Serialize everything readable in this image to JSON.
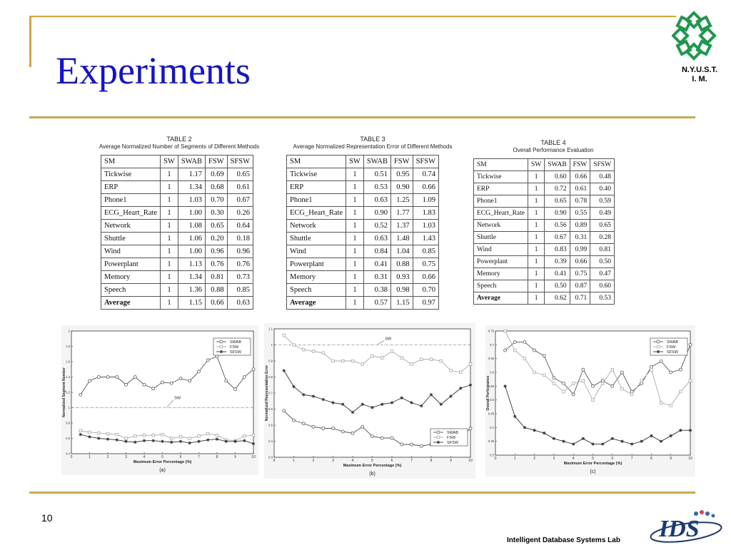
{
  "slide": {
    "title": "Experiments",
    "page_number": "10",
    "footer": "Intelligent Database Systems Lab",
    "logo_text_line1": "N.Y.U.S.T.",
    "logo_text_line2": "I. M.",
    "ids_logo": "IDS",
    "ids_logo_sub": "Intelligent Database Systems Lab",
    "colors": {
      "title": "#1010e0",
      "accent": "#e0a820",
      "logo": "#1a9a4a"
    }
  },
  "table2": {
    "number": "TABLE 2",
    "caption": "Average Normalized Number of Segments of Different Methods",
    "headers": [
      "SM",
      "SW",
      "SWAB",
      "FSW",
      "SFSW"
    ],
    "rows": [
      [
        "Tickwise",
        "1",
        "1.17",
        "0.69",
        "0.65"
      ],
      [
        "ERP",
        "1",
        "1.34",
        "0.68",
        "0.61"
      ],
      [
        "Phone1",
        "1",
        "1.03",
        "0.70",
        "0.67"
      ],
      [
        "ECG_Heart_Rate",
        "1",
        "1.00",
        "0.30",
        "0.26"
      ],
      [
        "Network",
        "1",
        "1.08",
        "0.65",
        "0.64"
      ],
      [
        "Shuttle",
        "1",
        "1.06",
        "0.20",
        "0.18"
      ],
      [
        "Wind",
        "1",
        "1.00",
        "0.96",
        "0.96"
      ],
      [
        "Powerplant",
        "1",
        "1.13",
        "0.76",
        "0.76"
      ],
      [
        "Memory",
        "1",
        "1.34",
        "0.81",
        "0.73"
      ],
      [
        "Speech",
        "1",
        "1.36",
        "0.88",
        "0.85"
      ],
      [
        "Average",
        "1",
        "1.15",
        "0.66",
        "0.63"
      ]
    ]
  },
  "table3": {
    "number": "TABLE 3",
    "caption": "Average Normalized Representation Error of Different Methods",
    "headers": [
      "SM",
      "SW",
      "SWAB",
      "FSW",
      "SFSW"
    ],
    "rows": [
      [
        "Tickwise",
        "1",
        "0.51",
        "0.95",
        "0.74"
      ],
      [
        "ERP",
        "1",
        "0.53",
        "0.90",
        "0.66"
      ],
      [
        "Phone1",
        "1",
        "0.63",
        "1.25",
        "1.09"
      ],
      [
        "ECG_Heart_Rate",
        "1",
        "0.90",
        "1.77",
        "1.83"
      ],
      [
        "Network",
        "1",
        "0.52",
        "1.37",
        "1.03"
      ],
      [
        "Shuttle",
        "1",
        "0.63",
        "1.48",
        "1.43"
      ],
      [
        "Wind",
        "1",
        "0.84",
        "1.04",
        "0.85"
      ],
      [
        "Powerplant",
        "1",
        "0.41",
        "0.88",
        "0.75"
      ],
      [
        "Memory",
        "1",
        "0.31",
        "0.93",
        "0.66"
      ],
      [
        "Speech",
        "1",
        "0.38",
        "0.98",
        "0.70"
      ],
      [
        "Average",
        "1",
        "0.57",
        "1.15",
        "0.97"
      ]
    ]
  },
  "table4": {
    "number": "TABLE 4",
    "caption": "Overall Performance Evaluation",
    "headers": [
      "SM",
      "SW",
      "SWAB",
      "FSW",
      "SFSW"
    ],
    "rows": [
      [
        "Tickwise",
        "1",
        "0.60",
        "0.66",
        "0.48"
      ],
      [
        "ERP",
        "1",
        "0.72",
        "0.61",
        "0.40"
      ],
      [
        "Phone1",
        "1",
        "0.65",
        "0.78",
        "0.59"
      ],
      [
        "ECG_Heart_Rate",
        "1",
        "0.90",
        "0.55",
        "0.49"
      ],
      [
        "Network",
        "1",
        "0.56",
        "0.89",
        "0.65"
      ],
      [
        "Shuttle",
        "1",
        "0.67",
        "0.31",
        "0.28"
      ],
      [
        "Wind",
        "1",
        "0.83",
        "0.99",
        "0.81"
      ],
      [
        "Powerplant",
        "1",
        "0.39",
        "0.66",
        "0.50"
      ],
      [
        "Memory",
        "1",
        "0.41",
        "0.75",
        "0.47"
      ],
      [
        "Speech",
        "1",
        "0.50",
        "0.87",
        "0.60"
      ],
      [
        "Average",
        "1",
        "0.62",
        "0.71",
        "0.53"
      ]
    ]
  },
  "chart_data": [
    {
      "type": "line",
      "sublabel": "(a)",
      "xlabel": "Maximum Error Percentage (%)",
      "ylabel": "Normalized Segment Number",
      "xlim": [
        0,
        10
      ],
      "ylim": [
        0.4,
        2
      ],
      "xticks": [
        0,
        1,
        2,
        3,
        4,
        5,
        6,
        7,
        8,
        9,
        10
      ],
      "yticks": [
        0.4,
        0.6,
        0.8,
        1,
        1.2,
        1.4,
        1.6,
        1.8,
        2
      ],
      "x": [
        0.5,
        1,
        1.5,
        2,
        2.5,
        3,
        3.5,
        4,
        4.5,
        5,
        5.5,
        6,
        6.5,
        7,
        7.5,
        8,
        8.5,
        9,
        9.5,
        10
      ],
      "series": [
        {
          "name": "SWAB",
          "color": "#555555",
          "marker": "circle",
          "values": [
            1.17,
            1.35,
            1.4,
            1.4,
            1.4,
            1.3,
            1.4,
            1.3,
            1.25,
            1.33,
            1.32,
            1.38,
            1.35,
            1.47,
            1.62,
            1.67,
            1.35,
            1.24,
            1.4,
            1.5
          ]
        },
        {
          "name": "FSW",
          "color": "#aaaaaa",
          "marker": "square",
          "values": [
            0.7,
            0.68,
            0.67,
            0.66,
            0.65,
            0.6,
            0.63,
            0.64,
            0.64,
            0.65,
            0.6,
            0.62,
            0.6,
            0.63,
            0.66,
            0.64,
            0.58,
            0.57,
            0.63,
            0.64
          ]
        },
        {
          "name": "SFSW",
          "color": "#333333",
          "marker": "star",
          "values": [
            0.65,
            0.62,
            0.6,
            0.59,
            0.58,
            0.56,
            0.55,
            0.57,
            0.57,
            0.56,
            0.55,
            0.56,
            0.54,
            0.56,
            0.58,
            0.59,
            0.56,
            0.56,
            0.57,
            0.53
          ]
        }
      ],
      "reference": {
        "name": "SW",
        "value": 1
      },
      "legend": "top-right"
    },
    {
      "type": "line",
      "sublabel": "(b)",
      "xlabel": "Maximum Error Percentage (%)",
      "ylabel": "Normalized Representation Error",
      "xlim": [
        0,
        10
      ],
      "ylim": [
        0.3,
        1.1
      ],
      "xticks": [
        0,
        1,
        2,
        3,
        4,
        5,
        6,
        7,
        8,
        9,
        10
      ],
      "yticks": [
        0.3,
        0.4,
        0.5,
        0.6,
        0.7,
        0.8,
        0.9,
        1,
        1.1
      ],
      "x": [
        0.5,
        1,
        1.5,
        2,
        2.5,
        3,
        3.5,
        4,
        4.5,
        5,
        5.5,
        6,
        6.5,
        7,
        7.5,
        8,
        8.5,
        9,
        9.5,
        10
      ],
      "series": [
        {
          "name": "SWAB",
          "color": "#555555",
          "marker": "circle",
          "values": [
            0.59,
            0.53,
            0.51,
            0.49,
            0.48,
            0.48,
            0.46,
            0.45,
            0.49,
            0.43,
            0.42,
            0.42,
            0.38,
            0.38,
            0.37,
            0.38,
            0.46,
            0.47,
            0.42,
            0.48
          ]
        },
        {
          "name": "FSW",
          "color": "#aaaaaa",
          "marker": "square",
          "values": [
            1.06,
            1.0,
            0.97,
            0.96,
            0.95,
            0.9,
            0.9,
            0.9,
            0.88,
            0.93,
            0.92,
            0.96,
            0.92,
            0.88,
            0.91,
            0.91,
            0.9,
            0.84,
            0.83,
            0.88
          ]
        },
        {
          "name": "SFSW",
          "color": "#333333",
          "marker": "star",
          "values": [
            0.84,
            0.74,
            0.69,
            0.68,
            0.66,
            0.64,
            0.63,
            0.58,
            0.63,
            0.61,
            0.63,
            0.64,
            0.67,
            0.64,
            0.62,
            0.69,
            0.63,
            0.68,
            0.73,
            0.75
          ]
        }
      ],
      "reference": {
        "name": "SW",
        "value": 1
      },
      "legend": "bottom-right"
    },
    {
      "type": "line",
      "sublabel": "(c)",
      "xlabel": "Maximum Error Percentage (%)",
      "ylabel": "Overall Performance",
      "xlim": [
        0,
        10
      ],
      "ylim": [
        0.3,
        0.75
      ],
      "xticks": [
        0,
        1,
        2,
        3,
        4,
        5,
        6,
        7,
        8,
        9,
        10
      ],
      "yticks": [
        0.3,
        0.35,
        0.4,
        0.45,
        0.5,
        0.55,
        0.6,
        0.65,
        0.7,
        0.75
      ],
      "x": [
        0.5,
        1,
        1.5,
        2,
        2.5,
        3,
        3.5,
        4,
        4.5,
        5,
        5.5,
        6,
        6.5,
        7,
        7.5,
        8,
        8.5,
        9,
        9.5,
        10
      ],
      "series": [
        {
          "name": "SWAB",
          "color": "#555555",
          "marker": "circle",
          "values": [
            0.68,
            0.71,
            0.71,
            0.68,
            0.66,
            0.58,
            0.56,
            0.52,
            0.61,
            0.55,
            0.57,
            0.55,
            0.6,
            0.53,
            0.56,
            0.62,
            0.64,
            0.6,
            0.61,
            0.7
          ]
        },
        {
          "name": "FSW",
          "color": "#aaaaaa",
          "marker": "square",
          "values": [
            0.75,
            0.68,
            0.65,
            0.6,
            0.59,
            0.56,
            0.53,
            0.56,
            0.57,
            0.5,
            0.56,
            0.61,
            0.54,
            0.52,
            0.57,
            0.61,
            0.49,
            0.48,
            0.53,
            0.57
          ]
        },
        {
          "name": "SFSW",
          "color": "#333333",
          "marker": "star",
          "values": [
            0.55,
            0.44,
            0.4,
            0.39,
            0.38,
            0.36,
            0.35,
            0.34,
            0.36,
            0.34,
            0.34,
            0.36,
            0.35,
            0.34,
            0.35,
            0.37,
            0.35,
            0.37,
            0.39,
            0.39
          ]
        }
      ],
      "legend": "top-right"
    }
  ]
}
